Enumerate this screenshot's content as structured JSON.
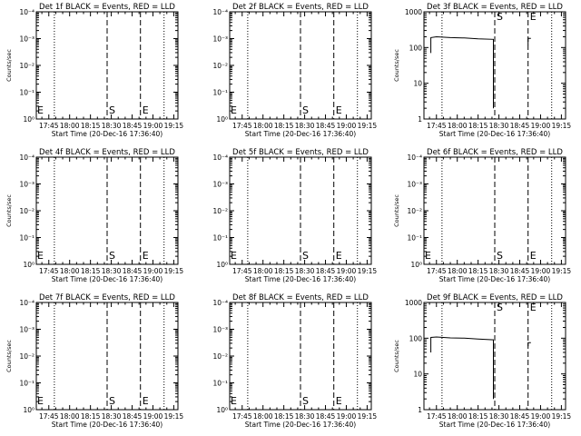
{
  "chart_data": [
    {
      "type": "line",
      "title": "Det 1f BLACK = Events, RED = LLD",
      "xlabel": "Start Time (20-Dec-16 17:36:40)",
      "ylabel": "Counts/sec",
      "xlim": [
        "17:36",
        "19:18"
      ],
      "ylim_exp": [
        0,
        4
      ],
      "log_y": true,
      "y_tick_labels": [
        "10⁰",
        "10⁻¹",
        "10⁻²",
        "10⁻³",
        "10⁻⁴"
      ],
      "x_ticks": [
        "17:45",
        "18:00",
        "18:15",
        "18:30",
        "18:45",
        "19:00",
        "19:15"
      ],
      "dotted_lines": [
        "17:49",
        "19:08"
      ],
      "dashed_lines": [
        {
          "time": "18:27",
          "label": "S"
        },
        {
          "time": "18:51",
          "label": "E"
        }
      ],
      "left_marker": "E",
      "series": []
    },
    {
      "type": "line",
      "title": "Det 2f BLACK = Events, RED = LLD",
      "xlabel": "Start Time (20-Dec-16 17:36:40)",
      "ylabel": "",
      "xlim": [
        "17:36",
        "19:18"
      ],
      "ylim_exp": [
        0,
        4
      ],
      "log_y": true,
      "y_tick_labels": [
        "10⁰",
        "10⁻¹",
        "10⁻²",
        "10⁻³",
        "10⁻⁴"
      ],
      "x_ticks": [
        "17:45",
        "18:00",
        "18:15",
        "18:30",
        "18:45",
        "19:00",
        "19:15"
      ],
      "dotted_lines": [
        "17:49",
        "19:08"
      ],
      "dashed_lines": [
        {
          "time": "18:27",
          "label": "S"
        },
        {
          "time": "18:51",
          "label": "E"
        }
      ],
      "left_marker": "E",
      "series": []
    },
    {
      "type": "line",
      "title": "Det 3f BLACK = Events, RED = LLD",
      "xlabel": "Start Time (20-Dec-16 17:36:40)",
      "ylabel": "Counts/sec",
      "xlim": [
        "17:36",
        "19:18"
      ],
      "ylim_exp": [
        0,
        3
      ],
      "log_y": true,
      "y_tick_labels": [
        "1",
        "10",
        "100",
        "1000"
      ],
      "x_ticks": [
        "17:45",
        "18:00",
        "18:15",
        "18:30",
        "18:45",
        "19:00",
        "19:15"
      ],
      "dotted_lines": [
        "17:49",
        "19:08"
      ],
      "dashed_lines": [
        {
          "time": "18:27",
          "label": "S"
        },
        {
          "time": "18:51",
          "label": "E"
        }
      ],
      "left_marker": "",
      "series": [
        {
          "name": "Events",
          "color": "#000000",
          "points": [
            [
              "17:41",
              70
            ],
            [
              "17:41",
              190
            ],
            [
              "17:45",
              200
            ],
            [
              "17:55",
              190
            ],
            [
              "18:05",
              185
            ],
            [
              "18:15",
              175
            ],
            [
              "18:26",
              170
            ],
            [
              "18:26",
              2
            ]
          ]
        },
        {
          "name": "Events-stub",
          "color": "#000000",
          "points": [
            [
              "18:51",
              120
            ],
            [
              "18:51",
              180
            ],
            [
              "18:53",
              180
            ]
          ]
        }
      ]
    },
    {
      "type": "line",
      "title": "Det 4f BLACK = Events, RED = LLD",
      "xlabel": "Start Time (20-Dec-16 17:36:40)",
      "ylabel": "Counts/sec",
      "xlim": [
        "17:36",
        "19:18"
      ],
      "ylim_exp": [
        0,
        4
      ],
      "log_y": true,
      "y_tick_labels": [
        "10⁰",
        "10⁻¹",
        "10⁻²",
        "10⁻³",
        "10⁻⁴"
      ],
      "x_ticks": [
        "17:45",
        "18:00",
        "18:15",
        "18:30",
        "18:45",
        "19:00",
        "19:15"
      ],
      "dotted_lines": [
        "17:49",
        "19:08"
      ],
      "dashed_lines": [
        {
          "time": "18:27",
          "label": "S"
        },
        {
          "time": "18:51",
          "label": "E"
        }
      ],
      "left_marker": "E",
      "series": []
    },
    {
      "type": "line",
      "title": "Det 5f BLACK = Events, RED = LLD",
      "xlabel": "Start Time (20-Dec-16 17:36:40)",
      "ylabel": "",
      "xlim": [
        "17:36",
        "19:18"
      ],
      "ylim_exp": [
        0,
        4
      ],
      "log_y": true,
      "y_tick_labels": [
        "10⁰",
        "10⁻¹",
        "10⁻²",
        "10⁻³",
        "10⁻⁴"
      ],
      "x_ticks": [
        "17:45",
        "18:00",
        "18:15",
        "18:30",
        "18:45",
        "19:00",
        "19:15"
      ],
      "dotted_lines": [
        "17:49",
        "19:08"
      ],
      "dashed_lines": [
        {
          "time": "18:27",
          "label": "S"
        },
        {
          "time": "18:51",
          "label": "E"
        }
      ],
      "left_marker": "E",
      "series": []
    },
    {
      "type": "line",
      "title": "Det 6f BLACK = Events, RED = LLD",
      "xlabel": "Start Time (20-Dec-16 17:36:40)",
      "ylabel": "Counts/sec",
      "xlim": [
        "17:36",
        "19:18"
      ],
      "ylim_exp": [
        0,
        4
      ],
      "log_y": true,
      "y_tick_labels": [
        "10⁰",
        "10⁻¹",
        "10⁻²",
        "10⁻³",
        "10⁻⁴"
      ],
      "x_ticks": [
        "17:45",
        "18:00",
        "18:15",
        "18:30",
        "18:45",
        "19:00",
        "19:15"
      ],
      "dotted_lines": [
        "17:49",
        "19:08"
      ],
      "dashed_lines": [
        {
          "time": "18:27",
          "label": "S"
        },
        {
          "time": "18:51",
          "label": "E"
        }
      ],
      "left_marker": "E",
      "series": []
    },
    {
      "type": "line",
      "title": "Det 7f BLACK = Events, RED = LLD",
      "xlabel": "Start Time (20-Dec-16 17:36:40)",
      "ylabel": "Counts/sec",
      "xlim": [
        "17:36",
        "19:18"
      ],
      "ylim_exp": [
        0,
        4
      ],
      "log_y": true,
      "y_tick_labels": [
        "10⁰",
        "10⁻¹",
        "10⁻²",
        "10⁻³",
        "10⁻⁴"
      ],
      "x_ticks": [
        "17:45",
        "18:00",
        "18:15",
        "18:30",
        "18:45",
        "19:00",
        "19:15"
      ],
      "dotted_lines": [
        "17:49",
        "19:08"
      ],
      "dashed_lines": [
        {
          "time": "18:27",
          "label": "S"
        },
        {
          "time": "18:51",
          "label": "E"
        }
      ],
      "left_marker": "E",
      "series": []
    },
    {
      "type": "line",
      "title": "Det 8f BLACK = Events, RED = LLD",
      "xlabel": "Start Time (20-Dec-16 17:36:40)",
      "ylabel": "",
      "xlim": [
        "17:36",
        "19:18"
      ],
      "ylim_exp": [
        0,
        4
      ],
      "log_y": true,
      "y_tick_labels": [
        "10⁰",
        "10⁻¹",
        "10⁻²",
        "10⁻³",
        "10⁻⁴"
      ],
      "x_ticks": [
        "17:45",
        "18:00",
        "18:15",
        "18:30",
        "18:45",
        "19:00",
        "19:15"
      ],
      "dotted_lines": [
        "17:49",
        "19:08"
      ],
      "dashed_lines": [
        {
          "time": "18:27",
          "label": "S"
        },
        {
          "time": "18:51",
          "label": "E"
        }
      ],
      "left_marker": "E",
      "series": []
    },
    {
      "type": "line",
      "title": "Det 9f BLACK = Events, RED = LLD",
      "xlabel": "Start Time (20-Dec-16 17:36:40)",
      "ylabel": "Counts/sec",
      "xlim": [
        "17:36",
        "19:18"
      ],
      "ylim_exp": [
        0,
        3
      ],
      "log_y": true,
      "y_tick_labels": [
        "1",
        "10",
        "100",
        "1000"
      ],
      "x_ticks": [
        "17:45",
        "18:00",
        "18:15",
        "18:30",
        "18:45",
        "19:00",
        "19:15"
      ],
      "dotted_lines": [
        "17:49",
        "19:08"
      ],
      "dashed_lines": [
        {
          "time": "18:27",
          "label": "S"
        },
        {
          "time": "18:51",
          "label": "E"
        }
      ],
      "left_marker": "",
      "series": [
        {
          "name": "Events",
          "color": "#000000",
          "points": [
            [
              "17:41",
              40
            ],
            [
              "17:41",
              105
            ],
            [
              "17:45",
              108
            ],
            [
              "17:55",
              102
            ],
            [
              "18:05",
              100
            ],
            [
              "18:15",
              95
            ],
            [
              "18:26",
              90
            ],
            [
              "18:26",
              2
            ]
          ]
        },
        {
          "name": "Events-stub",
          "color": "#000000",
          "points": [
            [
              "18:51",
              60
            ],
            [
              "18:51",
              75
            ],
            [
              "18:53",
              75
            ]
          ]
        }
      ]
    }
  ]
}
